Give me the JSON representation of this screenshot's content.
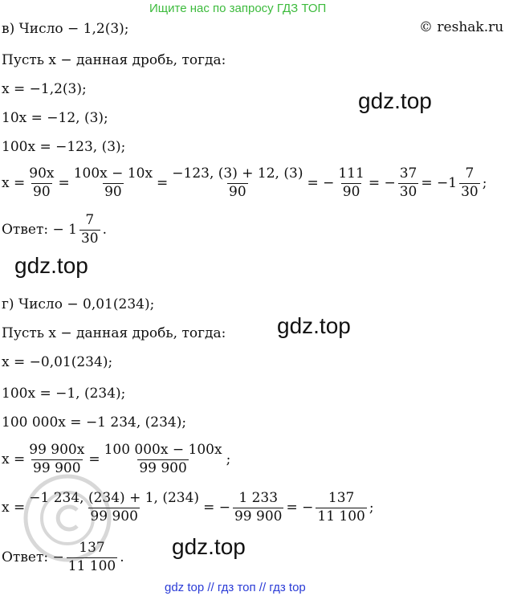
{
  "banner": "Ищите нас по запросу ГДЗ ТОП",
  "site": "© reshak.ru",
  "watermarks": [
    "gdz.top",
    "gdz.top",
    "gdz.top",
    "gdz.top"
  ],
  "part_v": {
    "heading": "в) Число  − 1,2(3);",
    "let": "Пусть x − данная дробь, тогда:",
    "eq1": "x = −1,2(3);",
    "eq2": "10x = −12, (3);",
    "eq3": "100x = −123, (3);",
    "eq4": {
      "lhs": "x =",
      "f1n": "90x",
      "f1d": "90",
      "f2n": "100x − 10x",
      "f2d": "90",
      "f3n": "−123, (3) + 12, (3)",
      "f3d": "90",
      "m1": "= −",
      "f4n": "111",
      "f4d": "90",
      "m2": "= −",
      "f5n": "37",
      "f5d": "30",
      "m3": "= −1",
      "f6n": "7",
      "f6d": "30",
      "end": ";"
    },
    "answer": {
      "label": "Ответ:  − 1",
      "fn": "7",
      "fd": "30",
      "end": "."
    }
  },
  "part_g": {
    "heading": "г) Число  − 0,01(234);",
    "let": "Пусть x − данная дробь, тогда:",
    "eq1": "x = −0,01(234);",
    "eq2": "100x = −1, (234);",
    "eq3": "100 000x = −1 234, (234);",
    "eq4": {
      "lhs": "x =",
      "f1n": "99 900x",
      "f1d": "99 900",
      "f2n": "100 000x − 100x",
      "f2d": "99 900",
      "end": ";"
    },
    "eq5": {
      "lhs": "x =",
      "f1n": "−1 234, (234) + 1, (234)",
      "f1d": "99 900",
      "m1": "= −",
      "f2n": "1 233",
      "f2d": "99 900",
      "m2": "= −",
      "f3n": "137",
      "f3d": "11 100",
      "end": ";"
    },
    "answer": {
      "label": "Ответ:  −",
      "fn": "137",
      "fd": "11 100",
      "end": "."
    }
  },
  "footer": "gdz top  //  гдз топ  //  гдз top"
}
